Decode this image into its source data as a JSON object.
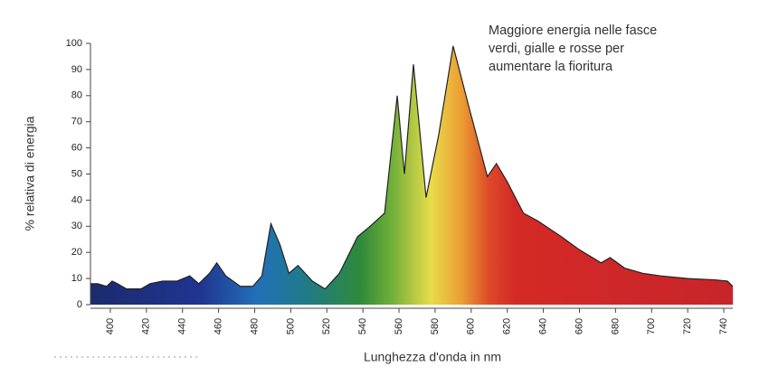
{
  "chart_data": {
    "type": "area",
    "title": [
      "Maggiore energia nelle fasce",
      "verdi, gialle e rosse per",
      "aumentare la fioritura"
    ],
    "xlabel": "Lunghezza d'onda in nm",
    "ylabel": "% relativa di energia",
    "x": [
      389,
      393,
      398,
      401,
      404,
      409,
      417,
      422,
      429,
      437,
      444,
      449,
      455,
      459,
      464,
      472,
      479,
      484,
      489,
      494,
      499,
      504,
      512,
      519,
      527,
      537,
      544,
      552,
      559,
      563,
      568,
      575,
      582,
      590,
      599,
      609,
      614,
      620,
      629,
      637,
      650,
      660,
      672,
      677,
      685,
      695,
      705,
      720,
      735,
      742,
      745
    ],
    "y": [
      8,
      8,
      7,
      9,
      8,
      6,
      6,
      8,
      9,
      9,
      11,
      8,
      12,
      16,
      11,
      7,
      7,
      11,
      31,
      23,
      12,
      15,
      9,
      6,
      12,
      26,
      30,
      35,
      80,
      50,
      92,
      41,
      65,
      99,
      75,
      49,
      54,
      47,
      35,
      32,
      26,
      21,
      16,
      18,
      14,
      12,
      11,
      10,
      9.5,
      9,
      7
    ],
    "xlim": [
      389,
      745
    ],
    "ylim": [
      0,
      100
    ],
    "xticks": [
      400,
      420,
      440,
      460,
      480,
      500,
      520,
      540,
      560,
      580,
      600,
      620,
      640,
      660,
      680,
      700,
      720,
      740
    ],
    "yticks": [
      0,
      10,
      20,
      30,
      40,
      50,
      60,
      70,
      80,
      90,
      100
    ],
    "grid": false
  }
}
